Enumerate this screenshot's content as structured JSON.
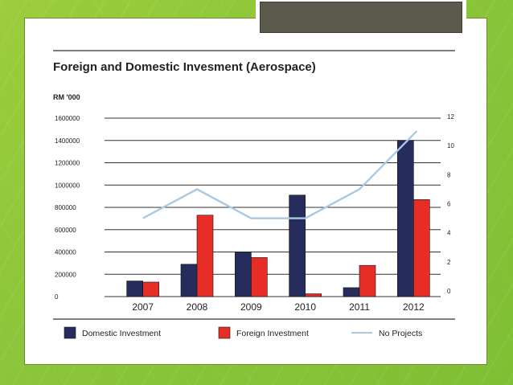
{
  "chart_data": {
    "type": "bar",
    "title": "Foreign and Domestic Invesment (Aerospace)",
    "ylabel": "RM '000",
    "ylim": [
      0,
      1600000
    ],
    "y_ticks": [
      "0",
      "200000",
      "400000",
      "600000",
      "800000",
      "1000000",
      "1200000",
      "1400000",
      "1600000"
    ],
    "y2lim": [
      0,
      12
    ],
    "y2_ticks": [
      "0",
      "2",
      "4",
      "6",
      "8",
      "10",
      "12"
    ],
    "categories": [
      "2007",
      "2008",
      "2009",
      "2010",
      "2011",
      "2012"
    ],
    "series": [
      {
        "name": "Domestic Investment",
        "type": "bar",
        "axis": "left",
        "color": "#262c5c",
        "values": [
          140000,
          290000,
          400000,
          910000,
          80000,
          1400000
        ]
      },
      {
        "name": "Foreign Investment",
        "type": "bar",
        "axis": "left",
        "color": "#e62e26",
        "values": [
          130000,
          730000,
          350000,
          25000,
          280000,
          870000
        ]
      },
      {
        "name": "No Projects",
        "type": "line",
        "axis": "right",
        "color": "#a9c8e2",
        "values": [
          5,
          7,
          5,
          5,
          7,
          11
        ]
      }
    ],
    "legend_position": "bottom"
  }
}
